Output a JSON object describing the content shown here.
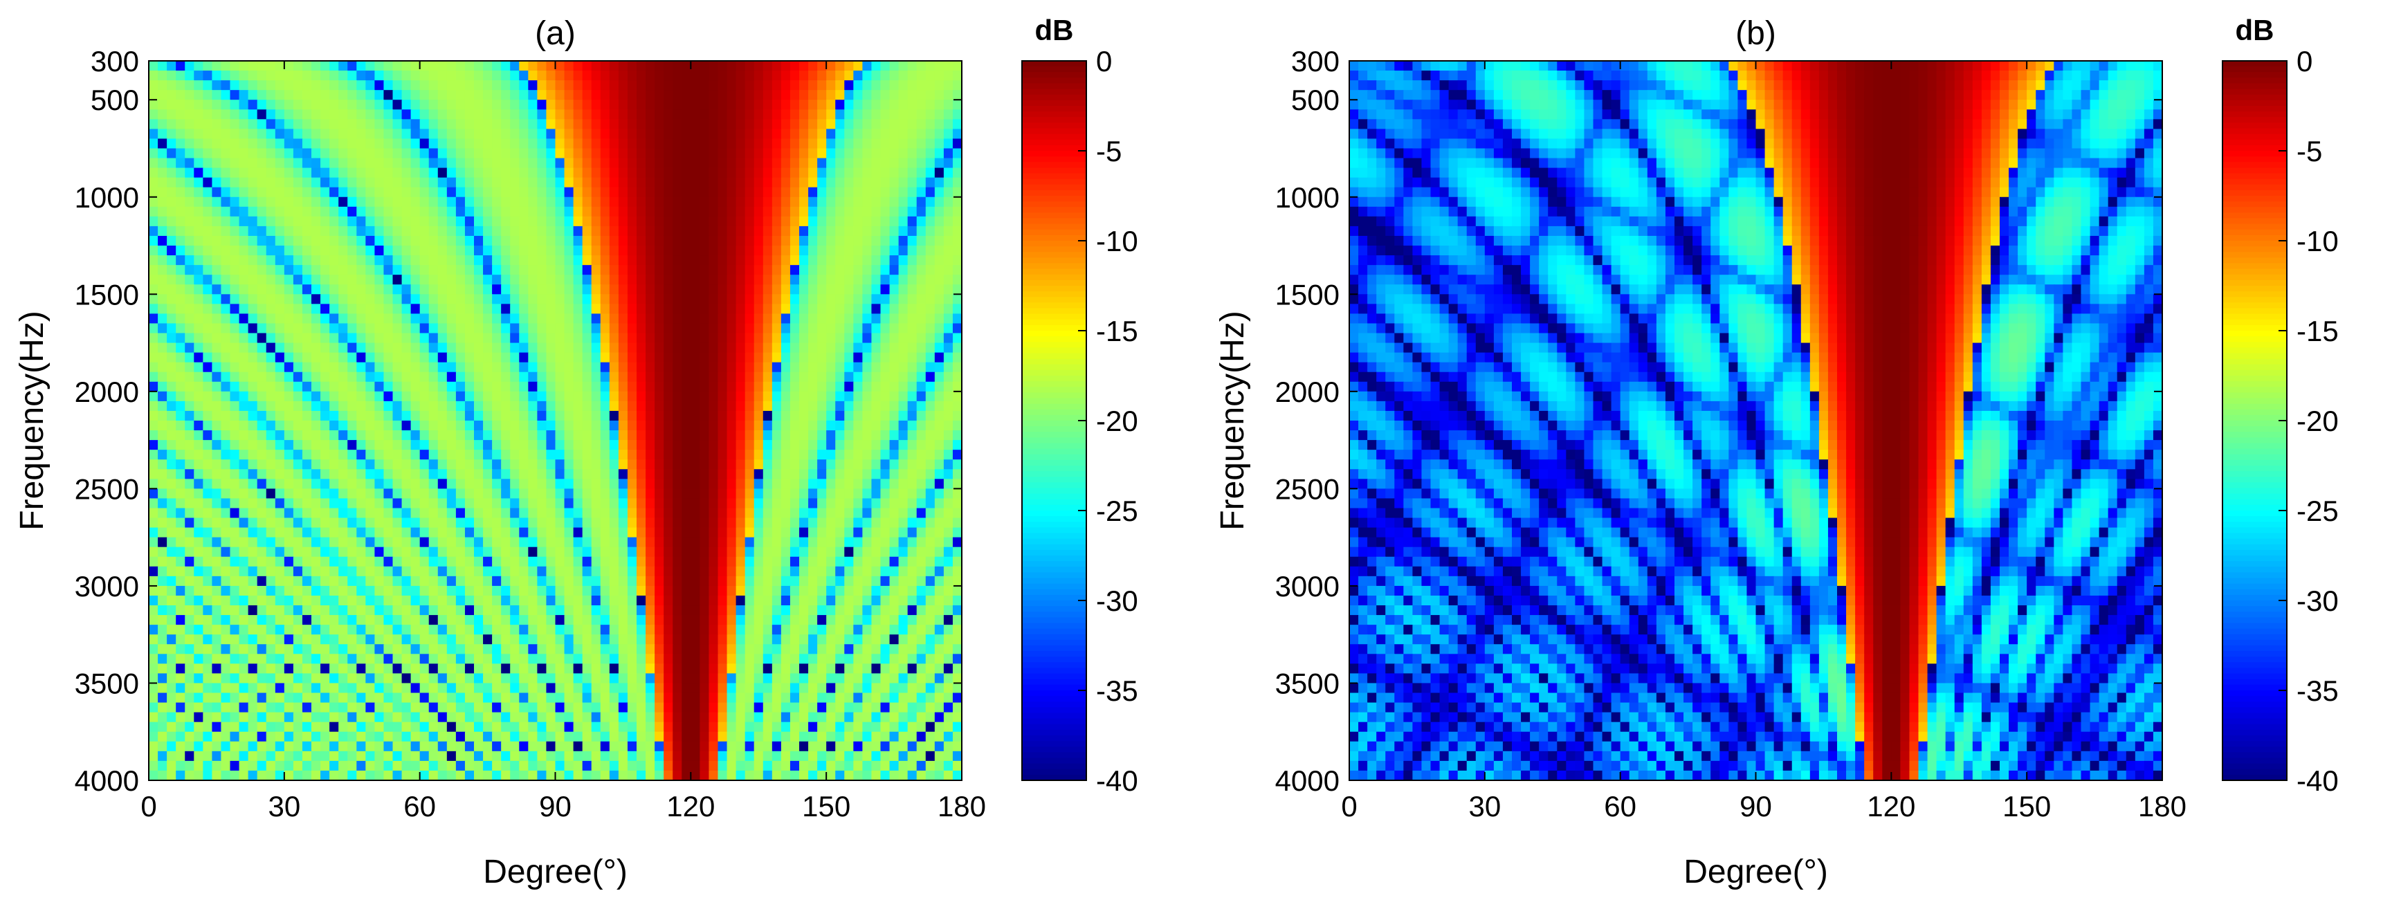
{
  "chart_data": [
    {
      "type": "heatmap",
      "title": "(a)",
      "xlabel": "Degree(°)",
      "ylabel": "Frequency(Hz)",
      "xlim": [
        0,
        180
      ],
      "ylim": [
        300,
        4000
      ],
      "y_reversed": true,
      "xticks": [
        0,
        30,
        60,
        90,
        120,
        150,
        180
      ],
      "yticks": [
        300,
        500,
        1000,
        1500,
        2000,
        2500,
        3000,
        3500,
        4000
      ],
      "colorbar": {
        "label": "dB",
        "colormap": "jet",
        "range": [
          -40,
          0
        ],
        "ticks": [
          0,
          -5,
          -10,
          -15,
          -20,
          -25,
          -30,
          -35,
          -40
        ]
      },
      "pattern": {
        "main_lobe_center_deg": 120,
        "main_lobe_halfwidth_deg_at_300hz": 40,
        "main_lobe_halfwidth_deg_at_4000hz": 6,
        "sidelobe_level_db": -18,
        "sidelobe_decay": 0,
        "grating_ripple": false
      }
    },
    {
      "type": "heatmap",
      "title": "(b)",
      "xlabel": "Degree(°)",
      "ylabel": "Frequency(Hz)",
      "xlim": [
        0,
        180
      ],
      "ylim": [
        300,
        4000
      ],
      "y_reversed": true,
      "xticks": [
        0,
        30,
        60,
        90,
        120,
        150,
        180
      ],
      "yticks": [
        300,
        500,
        1000,
        1500,
        2000,
        2500,
        3000,
        3500,
        4000
      ],
      "colorbar": {
        "label": "dB",
        "colormap": "jet",
        "range": [
          -40,
          0
        ],
        "ticks": [
          0,
          -5,
          -10,
          -15,
          -20,
          -25,
          -30,
          -35,
          -40
        ]
      },
      "pattern": {
        "main_lobe_center_deg": 120,
        "main_lobe_halfwidth_deg_at_300hz": 38,
        "main_lobe_halfwidth_deg_at_4000hz": 6,
        "sidelobe_level_db": -20,
        "sidelobe_decay": 6,
        "grating_ripple": true
      }
    }
  ]
}
